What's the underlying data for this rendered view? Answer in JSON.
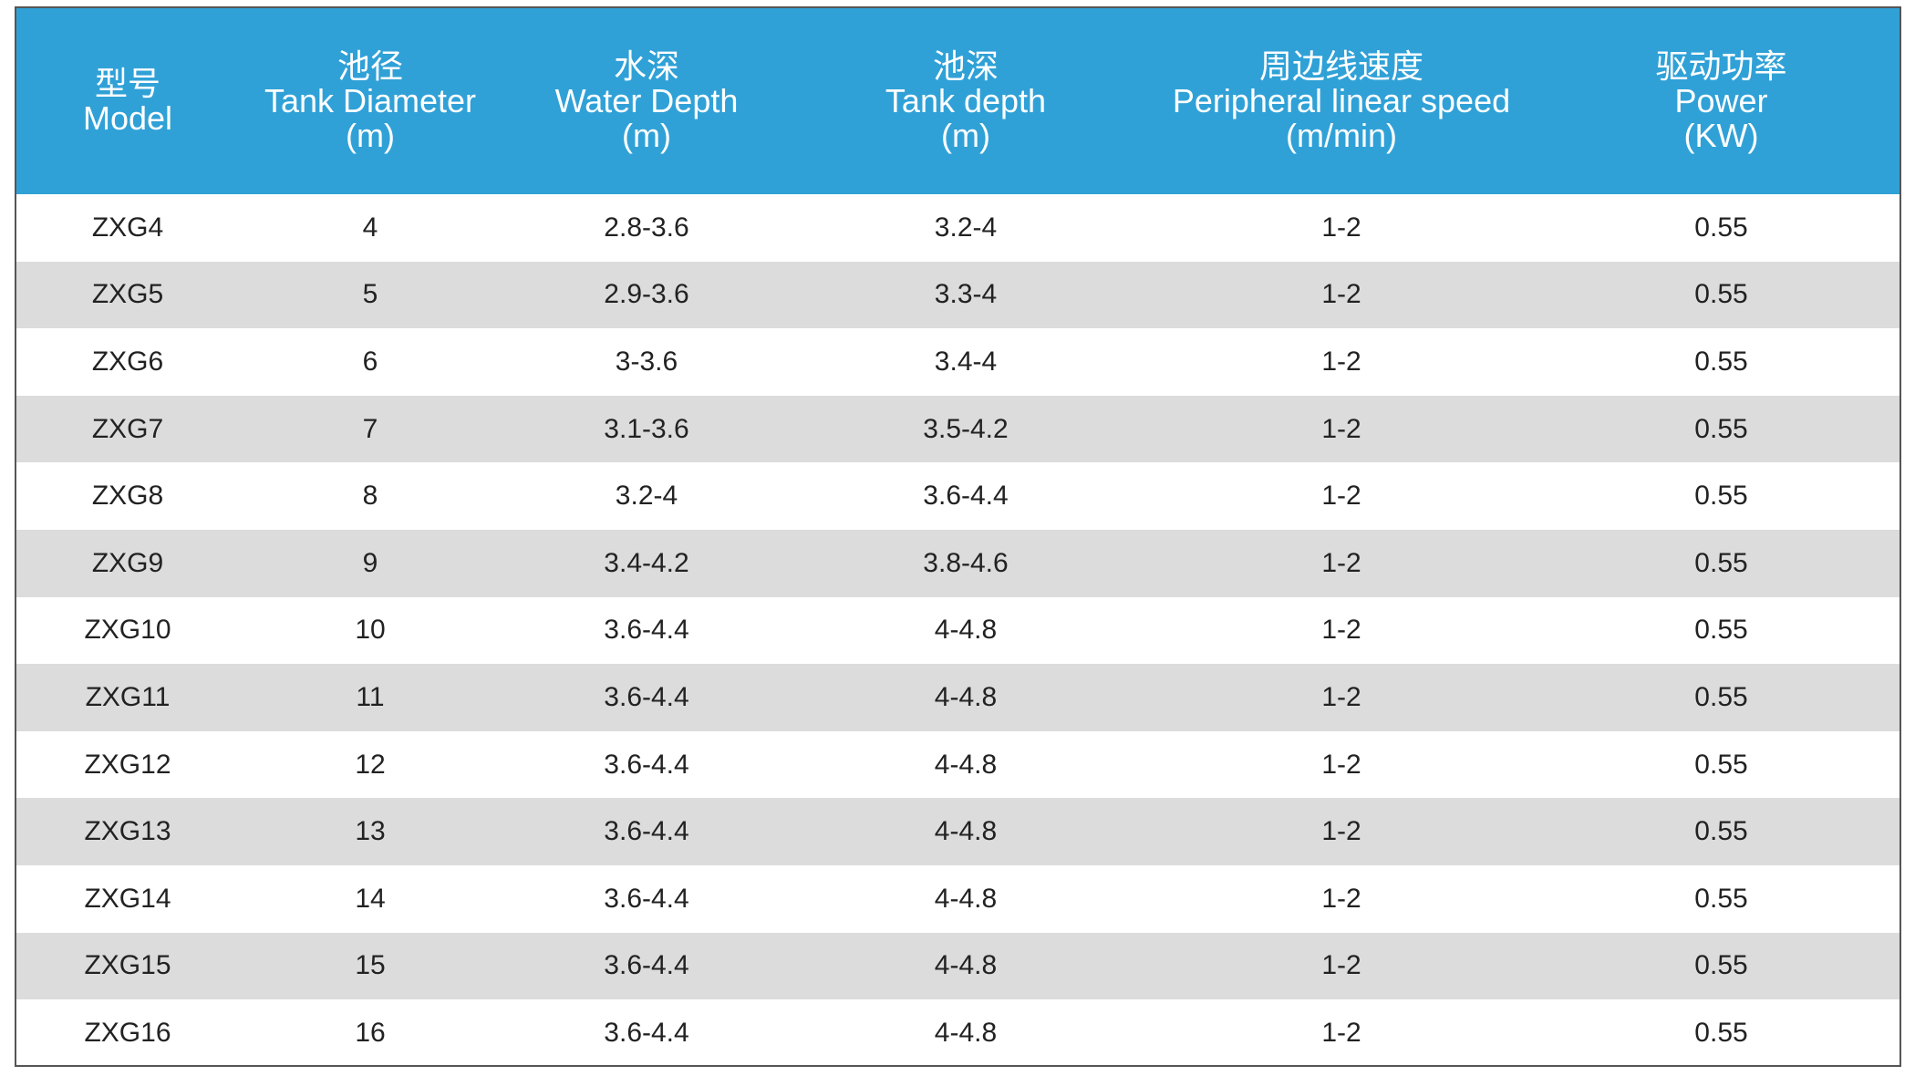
{
  "table": {
    "headers": [
      [
        "型号",
        "Model"
      ],
      [
        "池径",
        "Tank Diameter",
        "(m)"
      ],
      [
        "水深",
        "Water Depth",
        "(m)"
      ],
      [
        "池深",
        "Tank depth",
        "(m)"
      ],
      [
        "周边线速度",
        "Peripheral linear speed",
        "(m/min)"
      ],
      [
        "驱动功率",
        "Power",
        "(KW)"
      ]
    ],
    "rows": [
      [
        "ZXG4",
        "4",
        "2.8-3.6",
        "3.2-4",
        "1-2",
        "0.55"
      ],
      [
        "ZXG5",
        "5",
        "2.9-3.6",
        "3.3-4",
        "1-2",
        "0.55"
      ],
      [
        "ZXG6",
        "6",
        "3-3.6",
        "3.4-4",
        "1-2",
        "0.55"
      ],
      [
        "ZXG7",
        "7",
        "3.1-3.6",
        "3.5-4.2",
        "1-2",
        "0.55"
      ],
      [
        "ZXG8",
        "8",
        "3.2-4",
        "3.6-4.4",
        "1-2",
        "0.55"
      ],
      [
        "ZXG9",
        "9",
        "3.4-4.2",
        "3.8-4.6",
        "1-2",
        "0.55"
      ],
      [
        "ZXG10",
        "10",
        "3.6-4.4",
        "4-4.8",
        "1-2",
        "0.55"
      ],
      [
        "ZXG11",
        "11",
        "3.6-4.4",
        "4-4.8",
        "1-2",
        "0.55"
      ],
      [
        "ZXG12",
        "12",
        "3.6-4.4",
        "4-4.8",
        "1-2",
        "0.55"
      ],
      [
        "ZXG13",
        "13",
        "3.6-4.4",
        "4-4.8",
        "1-2",
        "0.55"
      ],
      [
        "ZXG14",
        "14",
        "3.6-4.4",
        "4-4.8",
        "1-2",
        "0.55"
      ],
      [
        "ZXG15",
        "15",
        "3.6-4.4",
        "4-4.8",
        "1-2",
        "0.55"
      ],
      [
        "ZXG16",
        "16",
        "3.6-4.4",
        "4-4.8",
        "1-2",
        "0.55"
      ]
    ]
  }
}
